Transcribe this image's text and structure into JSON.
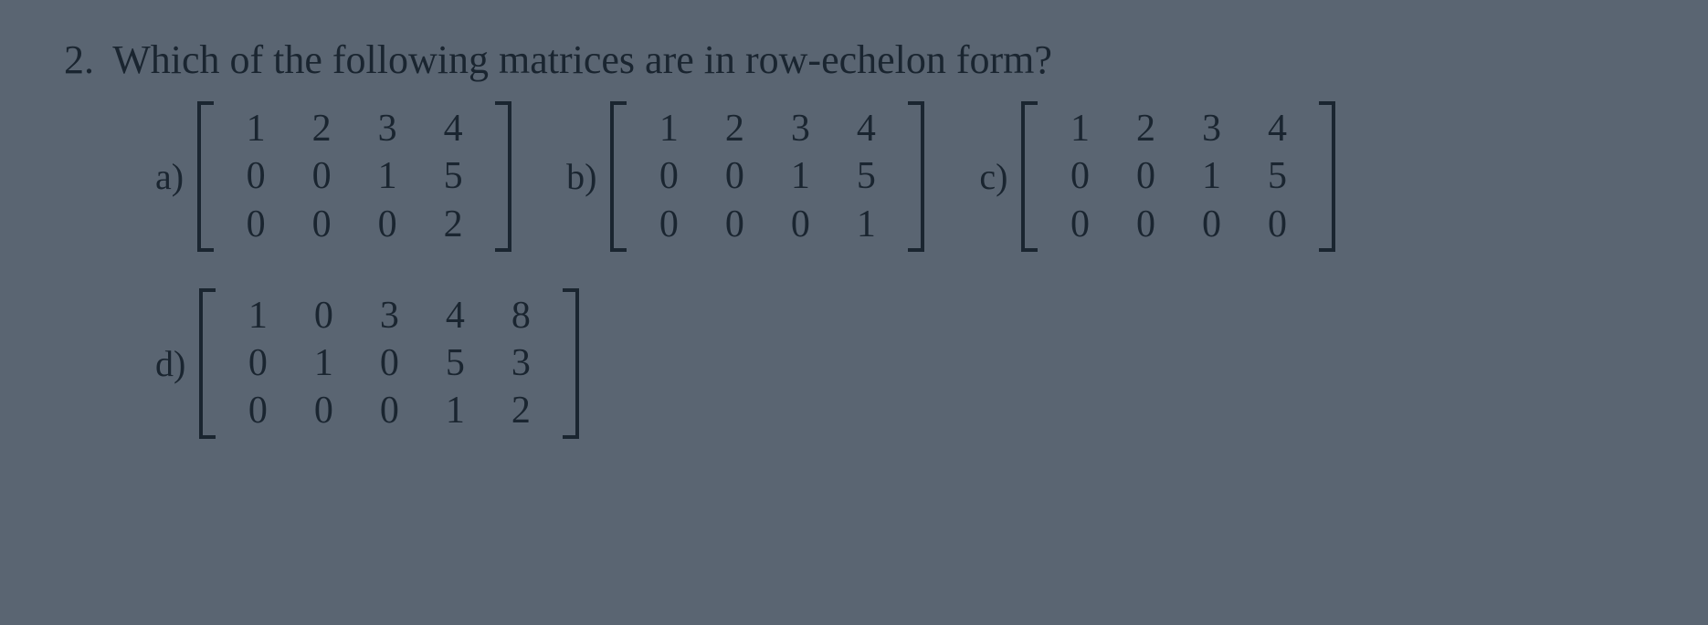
{
  "question": {
    "number": "2.",
    "text": "Which of the following matrices are in row-echelon form?"
  },
  "options": [
    {
      "label": "a)",
      "matrix": {
        "rows": 3,
        "cols": 4,
        "values": [
          [
            "1",
            "2",
            "3",
            "4"
          ],
          [
            "0",
            "0",
            "1",
            "5"
          ],
          [
            "0",
            "0",
            "0",
            "2"
          ]
        ]
      }
    },
    {
      "label": "b)",
      "matrix": {
        "rows": 3,
        "cols": 4,
        "values": [
          [
            "1",
            "2",
            "3",
            "4"
          ],
          [
            "0",
            "0",
            "1",
            "5"
          ],
          [
            "0",
            "0",
            "0",
            "1"
          ]
        ]
      }
    },
    {
      "label": "c)",
      "matrix": {
        "rows": 3,
        "cols": 4,
        "values": [
          [
            "1",
            "2",
            "3",
            "4"
          ],
          [
            "0",
            "0",
            "1",
            "5"
          ],
          [
            "0",
            "0",
            "0",
            "0"
          ]
        ]
      }
    },
    {
      "label": "d)",
      "matrix": {
        "rows": 3,
        "cols": 5,
        "values": [
          [
            "1",
            "0",
            "3",
            "4",
            "8"
          ],
          [
            "0",
            "1",
            "0",
            "5",
            "3"
          ],
          [
            "0",
            "0",
            "0",
            "1",
            "2"
          ]
        ]
      }
    }
  ],
  "style": {
    "background_color": "#5a6572",
    "text_color": "#1a2530",
    "question_fontsize": 44,
    "label_fontsize": 40,
    "cell_fontsize": 42,
    "bracket_thickness": 4,
    "cell_min_width": 52
  }
}
